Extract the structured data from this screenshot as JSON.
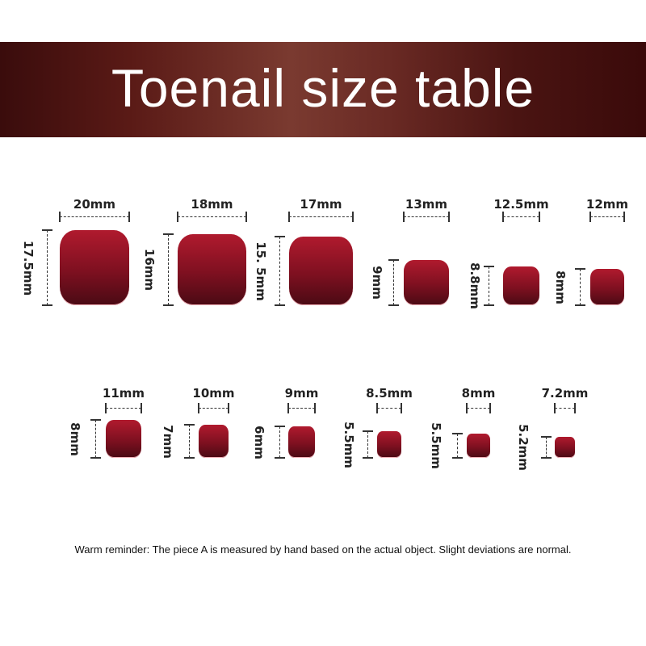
{
  "title": "Toenail size table",
  "nail_color": "#8a1222",
  "banner_color": "#5a1a16",
  "rows": [
    [
      {
        "width": "20mm",
        "height": "17.5mm"
      },
      {
        "width": "18mm",
        "height": "16mm"
      },
      {
        "width": "17mm",
        "height": "15. 5mm"
      },
      {
        "width": "13mm",
        "height": "9mm"
      },
      {
        "width": "12.5mm",
        "height": "8.8mm"
      },
      {
        "width": "12mm",
        "height": "8mm"
      }
    ],
    [
      {
        "width": "11mm",
        "height": "8mm"
      },
      {
        "width": "10mm",
        "height": "7mm"
      },
      {
        "width": "9mm",
        "height": "6mm"
      },
      {
        "width": "8.5mm",
        "height": "5.5mm"
      },
      {
        "width": "8mm",
        "height": "5.5mm"
      },
      {
        "width": "7.2mm",
        "height": "5.2mm"
      }
    ]
  ],
  "note": "Warm reminder: The piece A is measured by hand based on the actual object. Slight deviations are normal."
}
